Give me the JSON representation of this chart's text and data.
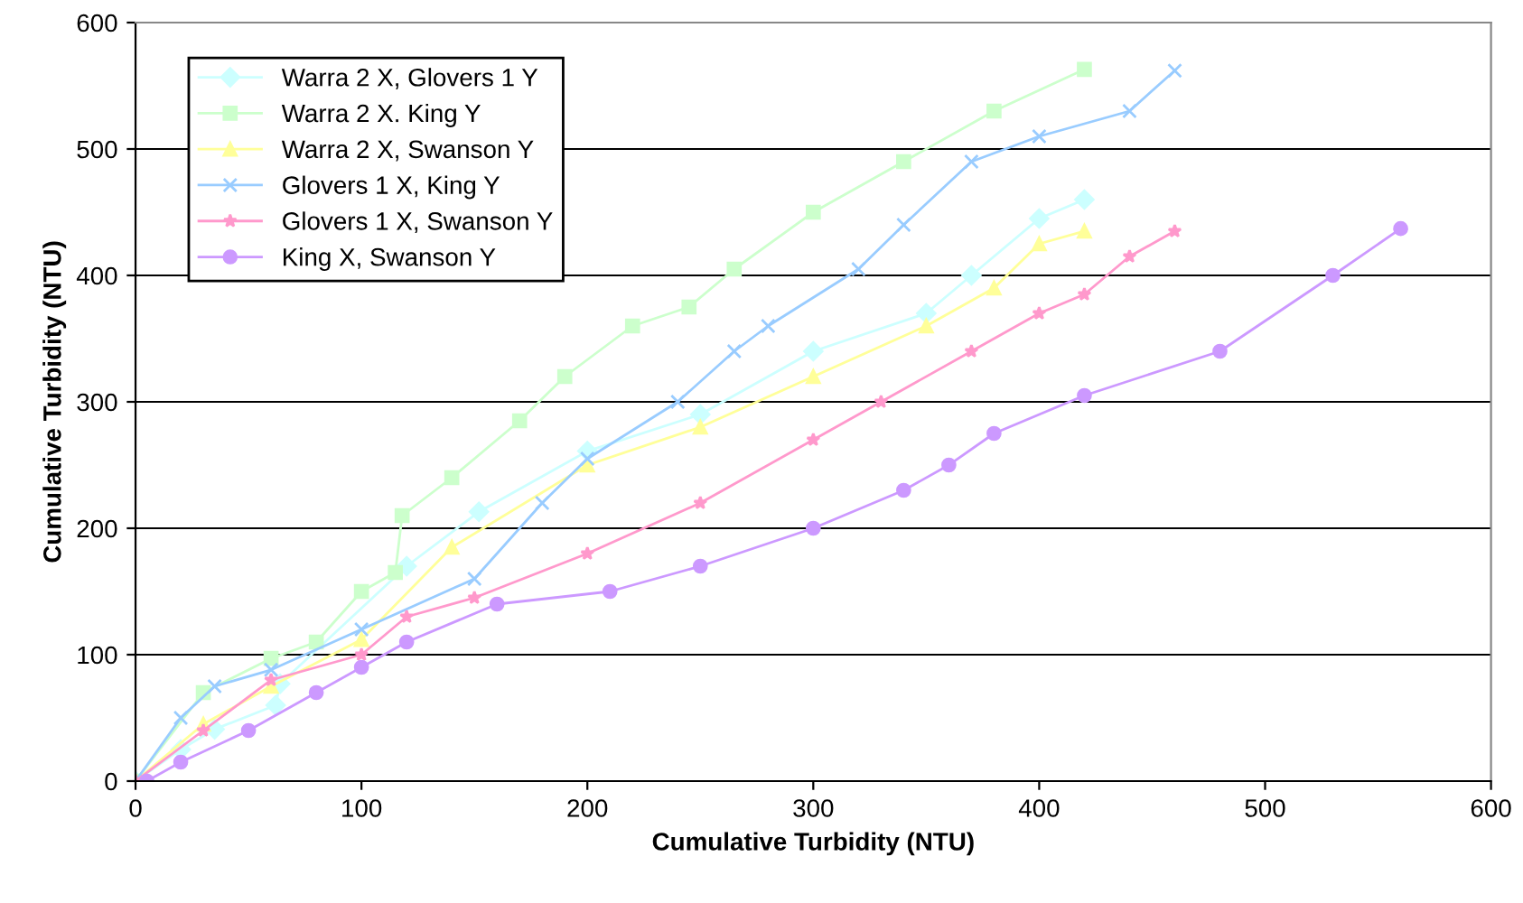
{
  "chart_data": {
    "type": "line",
    "xlabel": "Cumulative Turbidity (NTU)",
    "ylabel": "Cumulative Turbidity (NTU)",
    "xlim": [
      0,
      600
    ],
    "ylim": [
      0,
      600
    ],
    "xticks": [
      0,
      100,
      200,
      300,
      400,
      500,
      600
    ],
    "yticks": [
      0,
      100,
      200,
      300,
      400,
      500,
      600
    ],
    "grid": "y",
    "legend": "top left",
    "series": [
      {
        "name": "Warra 2 X, Glovers 1 Y",
        "color": "#ccffff",
        "marker": "diamond",
        "x": [
          0,
          20,
          35,
          62,
          64,
          120,
          152,
          200,
          250,
          300,
          350,
          370,
          400,
          420
        ],
        "values": [
          0,
          25,
          41,
          60,
          77,
          170,
          213,
          261,
          290,
          340,
          370,
          400,
          445,
          460
        ]
      },
      {
        "name": "Warra 2 X. King Y",
        "color": "#ccffcc",
        "marker": "square",
        "x": [
          0,
          30,
          60,
          80,
          100,
          115,
          118,
          140,
          170,
          190,
          220,
          245,
          265,
          300,
          340,
          380,
          420
        ],
        "values": [
          0,
          70,
          97,
          110,
          150,
          165,
          210,
          240,
          285,
          320,
          360,
          375,
          405,
          450,
          490,
          530,
          563
        ]
      },
      {
        "name": "Warra 2 X, Swanson Y",
        "color": "#ffff99",
        "marker": "triangle",
        "x": [
          0,
          30,
          60,
          100,
          140,
          200,
          250,
          300,
          350,
          380,
          400,
          420
        ],
        "values": [
          0,
          45,
          75,
          112,
          185,
          250,
          280,
          320,
          360,
          390,
          425,
          435
        ]
      },
      {
        "name": "Glovers 1 X, King Y",
        "color": "#99ccff",
        "marker": "cross",
        "x": [
          0,
          20,
          35,
          60,
          100,
          150,
          180,
          200,
          240,
          265,
          280,
          320,
          340,
          370,
          400,
          440,
          460
        ],
        "values": [
          0,
          50,
          75,
          88,
          120,
          160,
          220,
          255,
          300,
          340,
          360,
          405,
          440,
          490,
          510,
          530,
          562
        ]
      },
      {
        "name": "Glovers 1 X, Swanson Y",
        "color": "#ff99cc",
        "marker": "star",
        "x": [
          0,
          30,
          60,
          100,
          120,
          150,
          200,
          250,
          300,
          330,
          370,
          400,
          420,
          440,
          460
        ],
        "values": [
          0,
          40,
          80,
          100,
          130,
          145,
          180,
          220,
          270,
          300,
          340,
          370,
          385,
          415,
          435
        ]
      },
      {
        "name": "King X, Swanson Y",
        "color": "#cc99ff",
        "marker": "circle",
        "x": [
          5,
          20,
          50,
          80,
          100,
          120,
          160,
          210,
          250,
          300,
          340,
          360,
          380,
          420,
          480,
          530,
          560
        ],
        "values": [
          0,
          15,
          40,
          70,
          90,
          110,
          140,
          150,
          170,
          200,
          230,
          250,
          275,
          305,
          340,
          400,
          437
        ]
      }
    ]
  }
}
